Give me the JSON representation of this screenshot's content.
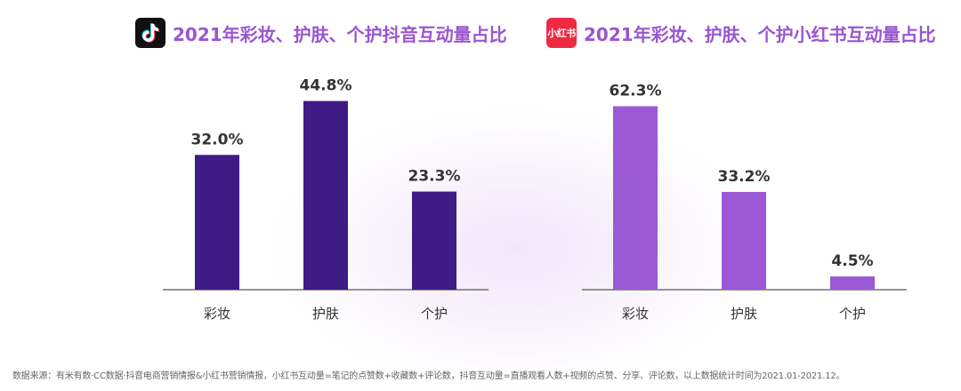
{
  "chart_data": [
    {
      "type": "bar",
      "title": "2021年彩妆、护肤、个护抖音互动量占比",
      "logo_icon": "douyin-logo-icon",
      "categories": [
        "彩妆",
        "护肤",
        "个护"
      ],
      "values": [
        32.0,
        44.8,
        23.3
      ],
      "data_labels": [
        "32.0%",
        "44.8%",
        "23.3%"
      ],
      "bar_color": "#3f1b86",
      "ylim": [
        0,
        50
      ],
      "grid": false,
      "legend": "none"
    },
    {
      "type": "bar",
      "title": "2021年彩妆、护肤、个护小红书互动量占比",
      "logo_icon": "xiaohongshu-logo-icon",
      "logo_text": "小红书",
      "categories": [
        "彩妆",
        "护肤",
        "个护"
      ],
      "values": [
        62.3,
        33.2,
        4.5
      ],
      "data_labels": [
        "62.3%",
        "33.2%",
        "4.5%"
      ],
      "bar_color": "#9c59d5",
      "ylim": [
        0,
        70
      ],
      "grid": false,
      "legend": "none"
    }
  ],
  "footnote": "数据来源：有米有数·CC数据·抖音电商营销情报&小红书营销情报，小红书互动量=笔记的点赞数+收藏数+评论数，抖音互动量=直播观看人数+视频的点赞、分享、评论数，以上数据统计时间为2021.01-2021.12。",
  "colors": {
    "title": "#9a55d1",
    "douyin_logo_bg": "#111111",
    "xhs_logo_bg": "#ee2a43",
    "label_text": "#333333",
    "axis": "#555555"
  }
}
